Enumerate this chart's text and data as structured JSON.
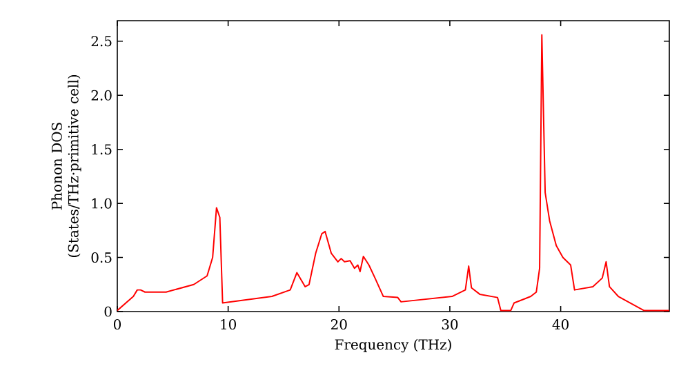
{
  "chart_data": {
    "type": "line",
    "xlabel": "Frequency (THz)",
    "ylabel": "Phonon DOS (States/THz·primitive cell)",
    "xlim": [
      0,
      49.8
    ],
    "ylim": [
      0,
      2.69
    ],
    "xticks": [
      0,
      10,
      20,
      30,
      40
    ],
    "yticks": [
      0,
      0.5,
      {
        "value": 1,
        "label": "1.0"
      },
      1.5,
      {
        "value": 2,
        "label": "2.0"
      },
      2.5
    ],
    "grid": false,
    "marker": "none",
    "line_style": "solid",
    "series": [
      {
        "color": "#ff0000",
        "x": [
          0,
          1.45,
          1.8,
          2.1,
          2.5,
          4.4,
          6.9,
          8.1,
          8.6,
          8.95,
          9.25,
          9.5,
          13.95,
          15.6,
          16.2,
          16.95,
          17.3,
          17.9,
          18.45,
          18.75,
          19.3,
          19.9,
          20.2,
          20.5,
          21.0,
          21.4,
          21.7,
          21.9,
          22.2,
          22.7,
          23.25,
          23.6,
          24.0,
          25.3,
          25.6,
          30.2,
          31.4,
          31.7,
          31.95,
          32.7,
          34.3,
          34.6,
          35.5,
          35.8,
          37.3,
          37.8,
          38.1,
          38.3,
          38.6,
          39.0,
          39.6,
          40.2,
          40.9,
          41.25,
          42.9,
          43.75,
          44.1,
          44.4,
          45.2,
          47.5,
          49.8
        ],
        "values": [
          0.01,
          0.14,
          0.2,
          0.2,
          0.18,
          0.18,
          0.25,
          0.33,
          0.5,
          0.96,
          0.87,
          0.08,
          0.14,
          0.2,
          0.36,
          0.23,
          0.25,
          0.54,
          0.72,
          0.74,
          0.54,
          0.46,
          0.49,
          0.46,
          0.47,
          0.4,
          0.43,
          0.37,
          0.51,
          0.43,
          0.31,
          0.23,
          0.14,
          0.13,
          0.09,
          0.14,
          0.2,
          0.42,
          0.22,
          0.16,
          0.13,
          0.01,
          0.01,
          0.08,
          0.14,
          0.18,
          0.4,
          2.56,
          1.1,
          0.84,
          0.61,
          0.5,
          0.43,
          0.2,
          0.23,
          0.31,
          0.46,
          0.23,
          0.14,
          0.01,
          0.01
        ]
      }
    ]
  }
}
